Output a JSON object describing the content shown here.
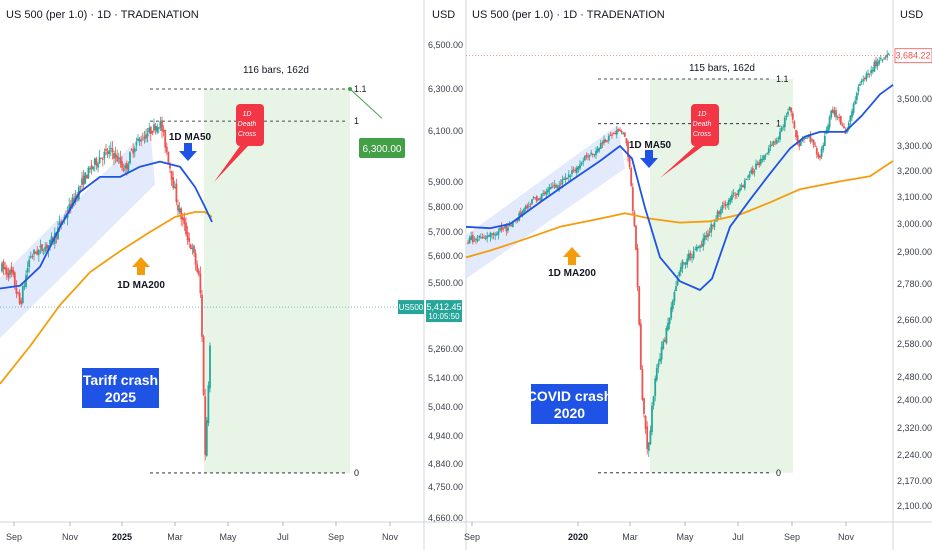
{
  "chart_data": [
    {
      "type": "candlestick",
      "title": "US 500 (per 1.0) · 1D · TRADENATION",
      "currency": "USD",
      "yticks": [
        6500,
        6300,
        6100,
        5900,
        5800,
        5700,
        5600,
        5500,
        5260,
        5140,
        5040,
        4940,
        4840,
        4750,
        4660
      ],
      "xticks": [
        "Sep",
        "Nov",
        "2025",
        "Mar",
        "May",
        "Jul",
        "Sep",
        "Nov"
      ],
      "bold_xticks": [
        "2025"
      ],
      "price_tag": {
        "symbol": "US500",
        "value": "5,412.45",
        "timer": "10:05:50"
      },
      "target_tag": "6,300.00",
      "measure_label": "116 bars, 162d",
      "fib_levels": [
        {
          "label": "1.1",
          "price": 6300
        },
        {
          "label": "1",
          "price": 6147
        },
        {
          "label": "0",
          "price": 4805
        }
      ],
      "annotations": {
        "death_cross": [
          "1D",
          "Death",
          "Cross"
        ],
        "ma50": "1D MA50",
        "ma200": "1D MA200",
        "crash_title": [
          "Tariff crash",
          "2025"
        ]
      },
      "colors": {
        "up": "#26a69a",
        "down": "#ef5350",
        "ma50": "#1e53e5",
        "ma200": "#f59c0b",
        "zone": "#e8f4e6",
        "channel": "#dde6fb",
        "death_cross": "#f23645",
        "target": "#43a047",
        "label_box": "#1e53e5"
      }
    },
    {
      "type": "candlestick",
      "title": "US 500 (per 1.0) · 1D · TRADENATION",
      "currency": "USD",
      "yticks": [
        3500,
        3300,
        3200,
        3100,
        3000,
        2900,
        2780,
        2660,
        2580,
        2480,
        2400,
        2320,
        2240,
        2170,
        2100
      ],
      "xticks": [
        "Sep",
        "2020",
        "Mar",
        "May",
        "Jul",
        "Sep",
        "Nov"
      ],
      "bold_xticks": [
        "2020"
      ],
      "price_tag": {
        "value": "3,684.22"
      },
      "measure_label": "115 bars, 162d",
      "fib_levels": [
        {
          "label": "1.1",
          "price": 3585
        },
        {
          "label": "1",
          "price": 3395
        },
        {
          "label": "0",
          "price": 2192
        }
      ],
      "annotations": {
        "death_cross": [
          "1D",
          "Death",
          "Cross"
        ],
        "ma50": "1D MA50",
        "ma200": "1D MA200",
        "crash_title": [
          "COVID crash",
          "2020"
        ]
      },
      "colors": {
        "up": "#26a69a",
        "down": "#ef5350",
        "ma50": "#1e53e5",
        "ma200": "#f59c0b",
        "zone": "#e8f4e6",
        "channel": "#dde6fb",
        "death_cross": "#f23645",
        "label_box": "#1e53e5"
      }
    }
  ]
}
